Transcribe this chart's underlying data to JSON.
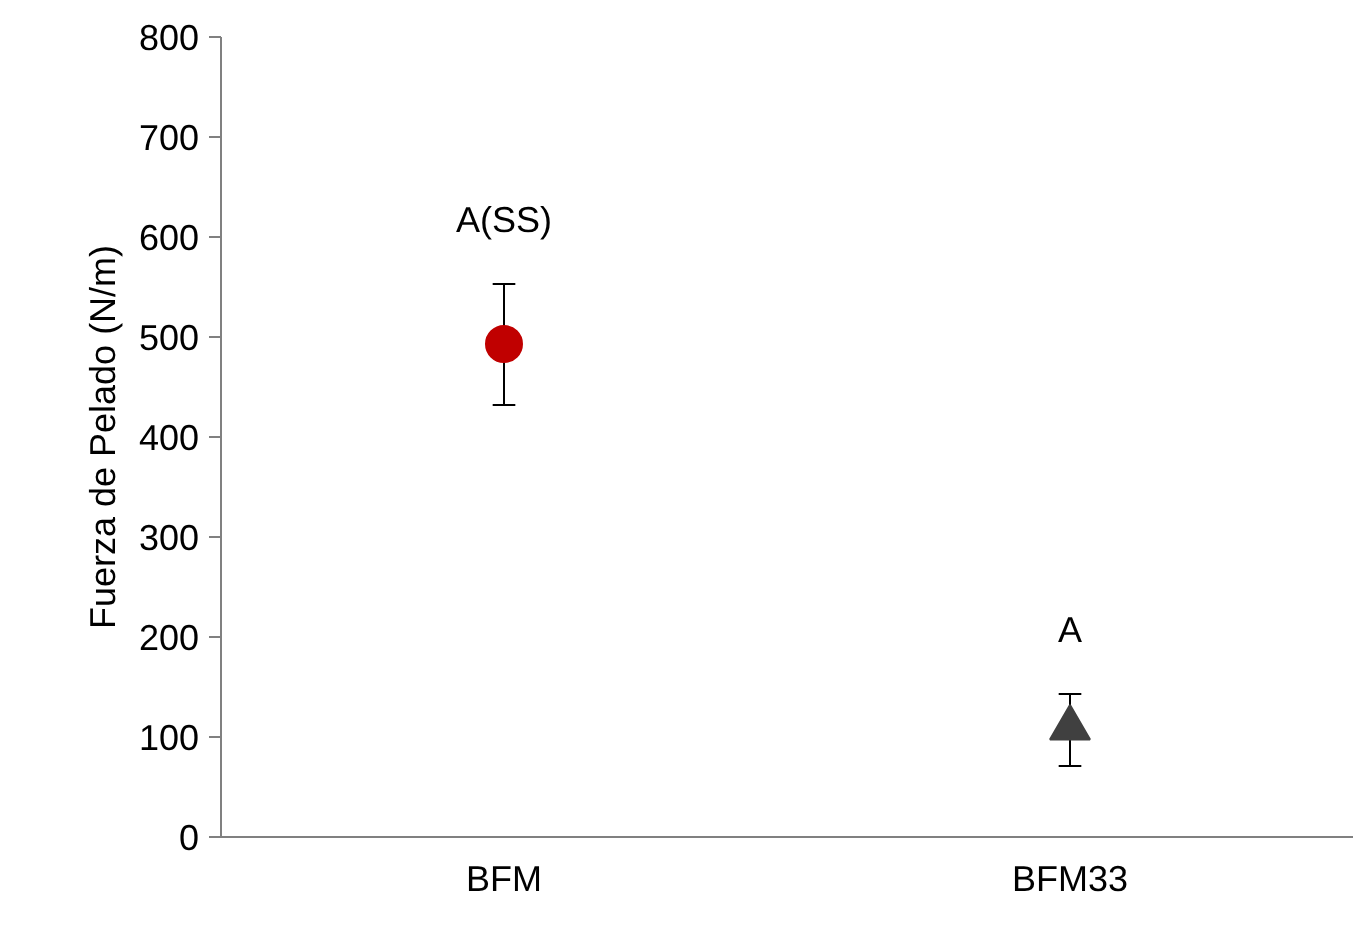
{
  "chart_data": {
    "type": "scatter",
    "ylabel": "Fuerza de Pelado (N/m)",
    "categories": [
      "BFM",
      "BFM33"
    ],
    "series": [
      {
        "color": "#c00000",
        "marker": "circle",
        "values": [
          493,
          null
        ],
        "errors": [
          [
            432,
            553
          ],
          null
        ]
      },
      {
        "color": "#404040",
        "marker": "triangle",
        "values": [
          null,
          109
        ],
        "errors": [
          null,
          [
            71,
            143
          ]
        ]
      }
    ],
    "ylim": [
      0,
      800
    ],
    "yticks": [
      0,
      100,
      200,
      300,
      400,
      500,
      600,
      700,
      800
    ],
    "grid": false,
    "annotations": [
      "A(SS)",
      "A"
    ]
  }
}
